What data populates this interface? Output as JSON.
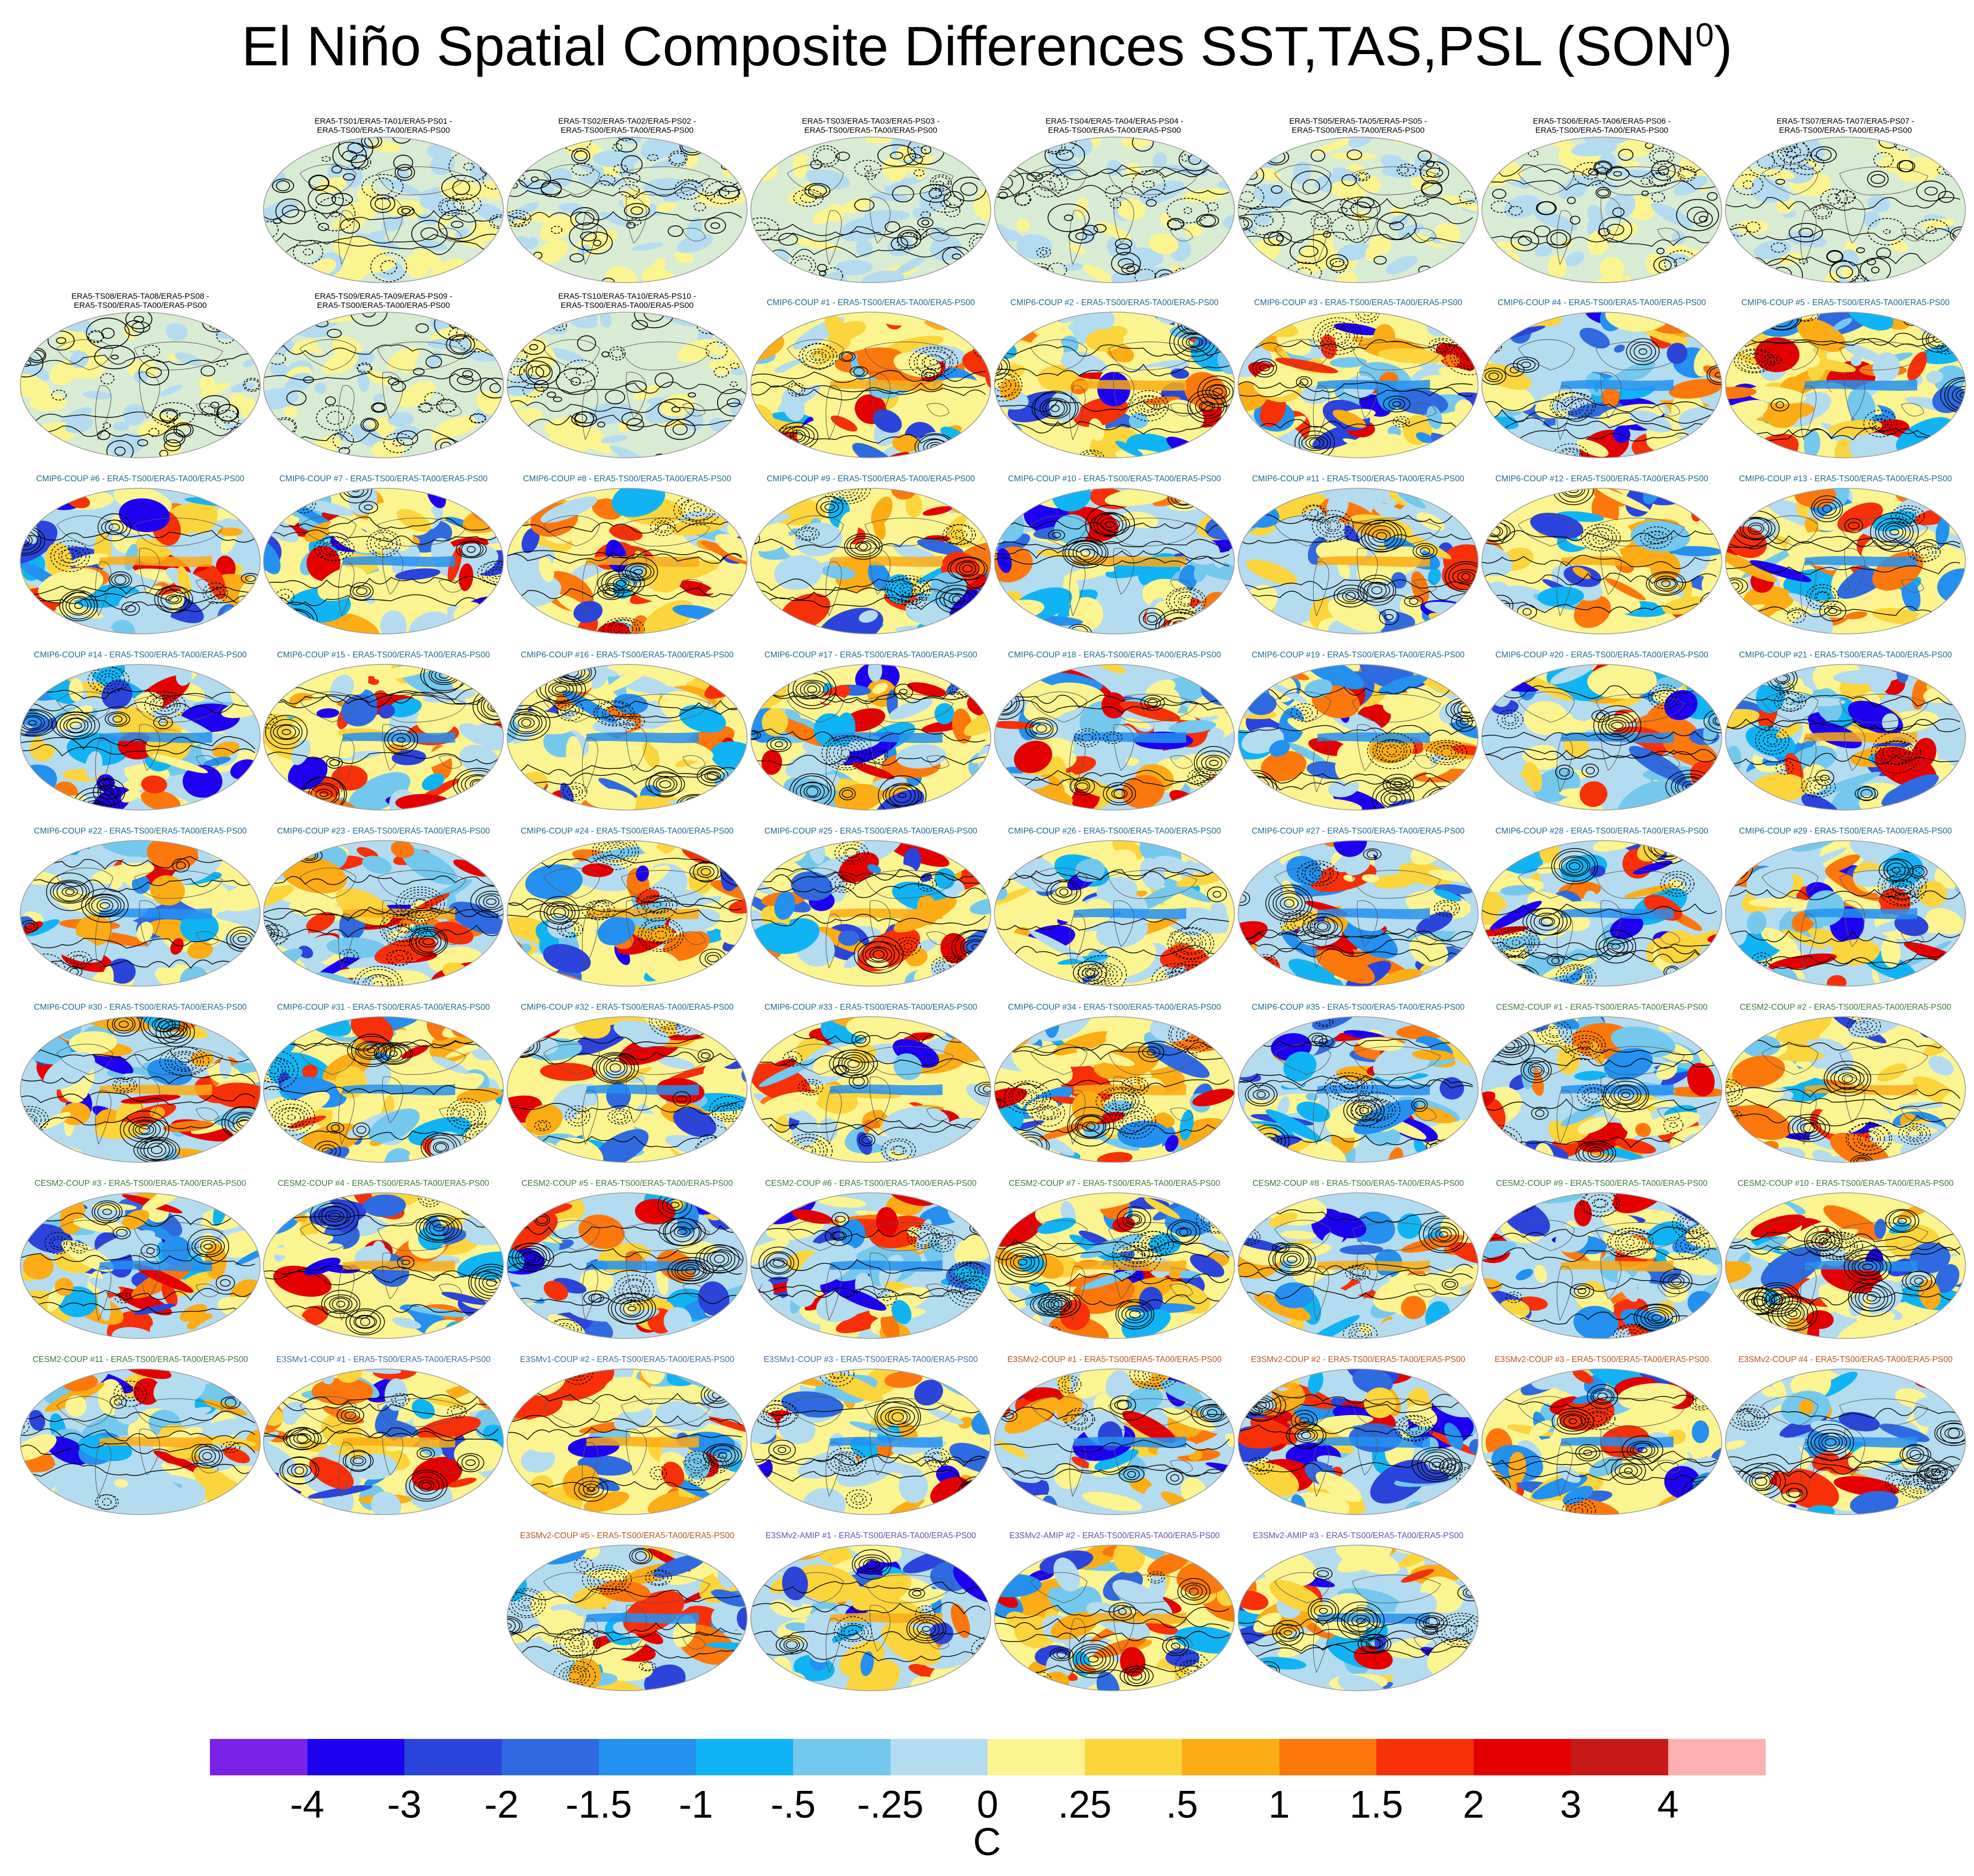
{
  "page": {
    "title": "El Niño Spatial Composite Differences SST,TAS,PSL (SON",
    "title_sup": "0",
    "title_close": ")"
  },
  "colors": {
    "era5_title": "#000000",
    "cmip6_title": "#1f6a8a",
    "cesm2_title": "#3a7a3a",
    "e3smv1_title": "#3c6e9c",
    "e3smv2_coup_title": "#b5541c",
    "e3smv2_amip_title": "#6a4cb0",
    "contour": "#000000",
    "land_grey": "#aab7c0"
  },
  "chart_data": {
    "type": "heatmap",
    "title": "El Niño Spatial Composite Differences SST,TAS,PSL (SON0)",
    "colorbar": {
      "units": "C",
      "tick_labels": [
        "-4",
        "-3",
        "-2",
        "-1.5",
        "-1",
        "-.5",
        "-.25",
        "0",
        ".25",
        ".5",
        "1",
        "1.5",
        "2",
        "3",
        "4"
      ],
      "colors": [
        "#7b22e8",
        "#1e00f0",
        "#2a44dc",
        "#2f6ae0",
        "#2490f0",
        "#10b4f4",
        "#74c8ee",
        "#b4dcf0",
        "#fcf490",
        "#fcd43c",
        "#fcac14",
        "#fc780c",
        "#f83008",
        "#e40000",
        "#c81818",
        "#fcb0b0"
      ]
    },
    "panels": [
      {
        "row": 0,
        "col": 1,
        "group": "era5",
        "lines": [
          "ERA5-TS01/ERA5-TA01/ERA5-PS01 -",
          "ERA5-TS00/ERA5-TA00/ERA5-PS00"
        ]
      },
      {
        "row": 0,
        "col": 2,
        "group": "era5",
        "lines": [
          "ERA5-TS02/ERA5-TA02/ERA5-PS02 -",
          "ERA5-TS00/ERA5-TA00/ERA5-PS00"
        ]
      },
      {
        "row": 0,
        "col": 3,
        "group": "era5",
        "lines": [
          "ERA5-TS03/ERA5-TA03/ERA5-PS03 -",
          "ERA5-TS00/ERA5-TA00/ERA5-PS00"
        ]
      },
      {
        "row": 0,
        "col": 4,
        "group": "era5",
        "lines": [
          "ERA5-TS04/ERA5-TA04/ERA5-PS04 -",
          "ERA5-TS00/ERA5-TA00/ERA5-PS00"
        ]
      },
      {
        "row": 0,
        "col": 5,
        "group": "era5",
        "lines": [
          "ERA5-TS05/ERA5-TA05/ERA5-PS05 -",
          "ERA5-TS00/ERA5-TA00/ERA5-PS00"
        ]
      },
      {
        "row": 0,
        "col": 6,
        "group": "era5",
        "lines": [
          "ERA5-TS06/ERA5-TA06/ERA5-PS06 -",
          "ERA5-TS00/ERA5-TA00/ERA5-PS00"
        ]
      },
      {
        "row": 0,
        "col": 7,
        "group": "era5",
        "lines": [
          "ERA5-TS07/ERA5-TA07/ERA5-PS07 -",
          "ERA5-TS00/ERA5-TA00/ERA5-PS00"
        ]
      },
      {
        "row": 1,
        "col": 0,
        "group": "era5",
        "lines": [
          "ERA5-TS08/ERA5-TA08/ERA5-PS08 -",
          "ERA5-TS00/ERA5-TA00/ERA5-PS00"
        ]
      },
      {
        "row": 1,
        "col": 1,
        "group": "era5",
        "lines": [
          "ERA5-TS09/ERA5-TA09/ERA5-PS09 -",
          "ERA5-TS00/ERA5-TA00/ERA5-PS00"
        ]
      },
      {
        "row": 1,
        "col": 2,
        "group": "era5",
        "lines": [
          "ERA5-TS10/ERA5-TA10/ERA5-PS10 -",
          "ERA5-TS00/ERA5-TA00/ERA5-PS00"
        ]
      },
      {
        "row": 1,
        "col": 3,
        "group": "cmip6",
        "lines": [
          "CMIP6-COUP  #1 - ERA5-TS00/ERA5-TA00/ERA5-PS00"
        ]
      },
      {
        "row": 1,
        "col": 4,
        "group": "cmip6",
        "lines": [
          "CMIP6-COUP  #2 - ERA5-TS00/ERA5-TA00/ERA5-PS00"
        ]
      },
      {
        "row": 1,
        "col": 5,
        "group": "cmip6",
        "lines": [
          "CMIP6-COUP  #3 - ERA5-TS00/ERA5-TA00/ERA5-PS00"
        ]
      },
      {
        "row": 1,
        "col": 6,
        "group": "cmip6",
        "lines": [
          "CMIP6-COUP  #4 - ERA5-TS00/ERA5-TA00/ERA5-PS00"
        ]
      },
      {
        "row": 1,
        "col": 7,
        "group": "cmip6",
        "lines": [
          "CMIP6-COUP  #5 - ERA5-TS00/ERA5-TA00/ERA5-PS00"
        ]
      },
      {
        "row": 2,
        "col": 0,
        "group": "cmip6",
        "lines": [
          "CMIP6-COUP  #6 - ERA5-TS00/ERA5-TA00/ERA5-PS00"
        ]
      },
      {
        "row": 2,
        "col": 1,
        "group": "cmip6",
        "lines": [
          "CMIP6-COUP  #7 - ERA5-TS00/ERA5-TA00/ERA5-PS00"
        ]
      },
      {
        "row": 2,
        "col": 2,
        "group": "cmip6",
        "lines": [
          "CMIP6-COUP  #8 - ERA5-TS00/ERA5-TA00/ERA5-PS00"
        ]
      },
      {
        "row": 2,
        "col": 3,
        "group": "cmip6",
        "lines": [
          "CMIP6-COUP  #9 - ERA5-TS00/ERA5-TA00/ERA5-PS00"
        ]
      },
      {
        "row": 2,
        "col": 4,
        "group": "cmip6",
        "lines": [
          "CMIP6-COUP  #10 - ERA5-TS00/ERA5-TA00/ERA5-PS00"
        ]
      },
      {
        "row": 2,
        "col": 5,
        "group": "cmip6",
        "lines": [
          "CMIP6-COUP  #11 - ERA5-TS00/ERA5-TA00/ERA5-PS00"
        ]
      },
      {
        "row": 2,
        "col": 6,
        "group": "cmip6",
        "lines": [
          "CMIP6-COUP  #12 - ERA5-TS00/ERA5-TA00/ERA5-PS00"
        ]
      },
      {
        "row": 2,
        "col": 7,
        "group": "cmip6",
        "lines": [
          "CMIP6-COUP  #13 - ERA5-TS00/ERA5-TA00/ERA5-PS00"
        ]
      },
      {
        "row": 3,
        "col": 0,
        "group": "cmip6",
        "lines": [
          "CMIP6-COUP  #14 - ERA5-TS00/ERA5-TA00/ERA5-PS00"
        ]
      },
      {
        "row": 3,
        "col": 1,
        "group": "cmip6",
        "lines": [
          "CMIP6-COUP  #15 - ERA5-TS00/ERA5-TA00/ERA5-PS00"
        ]
      },
      {
        "row": 3,
        "col": 2,
        "group": "cmip6",
        "lines": [
          "CMIP6-COUP  #16 - ERA5-TS00/ERA5-TA00/ERA5-PS00"
        ]
      },
      {
        "row": 3,
        "col": 3,
        "group": "cmip6",
        "lines": [
          "CMIP6-COUP  #17 - ERA5-TS00/ERA5-TA00/ERA5-PS00"
        ]
      },
      {
        "row": 3,
        "col": 4,
        "group": "cmip6",
        "lines": [
          "CMIP6-COUP  #18 - ERA5-TS00/ERA5-TA00/ERA5-PS00"
        ]
      },
      {
        "row": 3,
        "col": 5,
        "group": "cmip6",
        "lines": [
          "CMIP6-COUP  #19 - ERA5-TS00/ERA5-TA00/ERA5-PS00"
        ]
      },
      {
        "row": 3,
        "col": 6,
        "group": "cmip6",
        "lines": [
          "CMIP6-COUP  #20 - ERA5-TS00/ERA5-TA00/ERA5-PS00"
        ]
      },
      {
        "row": 3,
        "col": 7,
        "group": "cmip6",
        "lines": [
          "CMIP6-COUP  #21 - ERA5-TS00/ERA5-TA00/ERA5-PS00"
        ]
      },
      {
        "row": 4,
        "col": 0,
        "group": "cmip6",
        "lines": [
          "CMIP6-COUP  #22 - ERA5-TS00/ERA5-TA00/ERA5-PS00"
        ]
      },
      {
        "row": 4,
        "col": 1,
        "group": "cmip6",
        "lines": [
          "CMIP6-COUP  #23 - ERA5-TS00/ERA5-TA00/ERA5-PS00"
        ]
      },
      {
        "row": 4,
        "col": 2,
        "group": "cmip6",
        "lines": [
          "CMIP6-COUP  #24 - ERA5-TS00/ERA5-TA00/ERA5-PS00"
        ]
      },
      {
        "row": 4,
        "col": 3,
        "group": "cmip6",
        "lines": [
          "CMIP6-COUP  #25 - ERA5-TS00/ERA5-TA00/ERA5-PS00"
        ]
      },
      {
        "row": 4,
        "col": 4,
        "group": "cmip6",
        "lines": [
          "CMIP6-COUP  #26 - ERA5-TS00/ERA5-TA00/ERA5-PS00"
        ]
      },
      {
        "row": 4,
        "col": 5,
        "group": "cmip6",
        "lines": [
          "CMIP6-COUP  #27 - ERA5-TS00/ERA5-TA00/ERA5-PS00"
        ]
      },
      {
        "row": 4,
        "col": 6,
        "group": "cmip6",
        "lines": [
          "CMIP6-COUP  #28 - ERA5-TS00/ERA5-TA00/ERA5-PS00"
        ]
      },
      {
        "row": 4,
        "col": 7,
        "group": "cmip6",
        "lines": [
          "CMIP6-COUP  #29 - ERA5-TS00/ERA5-TA00/ERA5-PS00"
        ]
      },
      {
        "row": 5,
        "col": 0,
        "group": "cmip6",
        "lines": [
          "CMIP6-COUP  #30 - ERA5-TS00/ERA5-TA00/ERA5-PS00"
        ]
      },
      {
        "row": 5,
        "col": 1,
        "group": "cmip6",
        "lines": [
          "CMIP6-COUP  #31 - ERA5-TS00/ERA5-TA00/ERA5-PS00"
        ]
      },
      {
        "row": 5,
        "col": 2,
        "group": "cmip6",
        "lines": [
          "CMIP6-COUP  #32 - ERA5-TS00/ERA5-TA00/ERA5-PS00"
        ]
      },
      {
        "row": 5,
        "col": 3,
        "group": "cmip6",
        "lines": [
          "CMIP6-COUP  #33 - ERA5-TS00/ERA5-TA00/ERA5-PS00"
        ]
      },
      {
        "row": 5,
        "col": 4,
        "group": "cmip6",
        "lines": [
          "CMIP6-COUP  #34 - ERA5-TS00/ERA5-TA00/ERA5-PS00"
        ]
      },
      {
        "row": 5,
        "col": 5,
        "group": "cmip6",
        "lines": [
          "CMIP6-COUP  #35 - ERA5-TS00/ERA5-TA00/ERA5-PS00"
        ]
      },
      {
        "row": 5,
        "col": 6,
        "group": "cesm2",
        "lines": [
          "CESM2-COUP  #1 - ERA5-TS00/ERA5-TA00/ERA5-PS00"
        ]
      },
      {
        "row": 5,
        "col": 7,
        "group": "cesm2",
        "lines": [
          "CESM2-COUP  #2 - ERA5-TS00/ERA5-TA00/ERA5-PS00"
        ]
      },
      {
        "row": 6,
        "col": 0,
        "group": "cesm2",
        "lines": [
          "CESM2-COUP  #3 - ERA5-TS00/ERA5-TA00/ERA5-PS00"
        ]
      },
      {
        "row": 6,
        "col": 1,
        "group": "cesm2",
        "lines": [
          "CESM2-COUP  #4 - ERA5-TS00/ERA5-TA00/ERA5-PS00"
        ]
      },
      {
        "row": 6,
        "col": 2,
        "group": "cesm2",
        "lines": [
          "CESM2-COUP  #5 - ERA5-TS00/ERA5-TA00/ERA5-PS00"
        ]
      },
      {
        "row": 6,
        "col": 3,
        "group": "cesm2",
        "lines": [
          "CESM2-COUP  #6 - ERA5-TS00/ERA5-TA00/ERA5-PS00"
        ]
      },
      {
        "row": 6,
        "col": 4,
        "group": "cesm2",
        "lines": [
          "CESM2-COUP  #7 - ERA5-TS00/ERA5-TA00/ERA5-PS00"
        ]
      },
      {
        "row": 6,
        "col": 5,
        "group": "cesm2",
        "lines": [
          "CESM2-COUP  #8 - ERA5-TS00/ERA5-TA00/ERA5-PS00"
        ]
      },
      {
        "row": 6,
        "col": 6,
        "group": "cesm2",
        "lines": [
          "CESM2-COUP  #9 - ERA5-TS00/ERA5-TA00/ERA5-PS00"
        ]
      },
      {
        "row": 6,
        "col": 7,
        "group": "cesm2",
        "lines": [
          "CESM2-COUP  #10 - ERA5-TS00/ERA5-TA00/ERA5-PS00"
        ]
      },
      {
        "row": 7,
        "col": 0,
        "group": "cesm2",
        "lines": [
          "CESM2-COUP  #11 - ERA5-TS00/ERA5-TA00/ERA5-PS00"
        ]
      },
      {
        "row": 7,
        "col": 1,
        "group": "e3smv1",
        "lines": [
          "E3SMv1-COUP #1 - ERA5-TS00/ERA5-TA00/ERA5-PS00"
        ]
      },
      {
        "row": 7,
        "col": 2,
        "group": "e3smv1",
        "lines": [
          "E3SMv1-COUP #2 - ERA5-TS00/ERA5-TA00/ERA5-PS00"
        ]
      },
      {
        "row": 7,
        "col": 3,
        "group": "e3smv1",
        "lines": [
          "E3SMv1-COUP #3 - ERA5-TS00/ERA5-TA00/ERA5-PS00"
        ]
      },
      {
        "row": 7,
        "col": 4,
        "group": "e3smv2_coup",
        "lines": [
          "E3SMv2-COUP #1 - ERA5-TS00/ERA5-TA00/ERA5-PS00"
        ]
      },
      {
        "row": 7,
        "col": 5,
        "group": "e3smv2_coup",
        "lines": [
          "E3SMv2-COUP #2 - ERA5-TS00/ERA5-TA00/ERA5-PS00"
        ]
      },
      {
        "row": 7,
        "col": 6,
        "group": "e3smv2_coup",
        "lines": [
          "E3SMv2-COUP #3 - ERA5-TS00/ERA5-TA00/ERA5-PS00"
        ]
      },
      {
        "row": 7,
        "col": 7,
        "group": "e3smv2_coup",
        "lines": [
          "E3SMv2-COUP #4 - ERA5-TS00/ERA5-TA00/ERA5-PS00"
        ]
      },
      {
        "row": 8,
        "col": 2,
        "group": "e3smv2_coup",
        "lines": [
          "E3SMv2-COUP #5 - ERA5-TS00/ERA5-TA00/ERA5-PS00"
        ]
      },
      {
        "row": 8,
        "col": 3,
        "group": "e3smv2_amip",
        "lines": [
          "E3SMv2-AMIP #1 - ERA5-TS00/ERA5-TA00/ERA5-PS00"
        ]
      },
      {
        "row": 8,
        "col": 4,
        "group": "e3smv2_amip",
        "lines": [
          "E3SMv2-AMIP #2 - ERA5-TS00/ERA5-TA00/ERA5-PS00"
        ]
      },
      {
        "row": 8,
        "col": 5,
        "group": "e3smv2_amip",
        "lines": [
          "E3SMv2-AMIP #3 - ERA5-TS00/ERA5-TA00/ERA5-PS00"
        ]
      }
    ]
  }
}
